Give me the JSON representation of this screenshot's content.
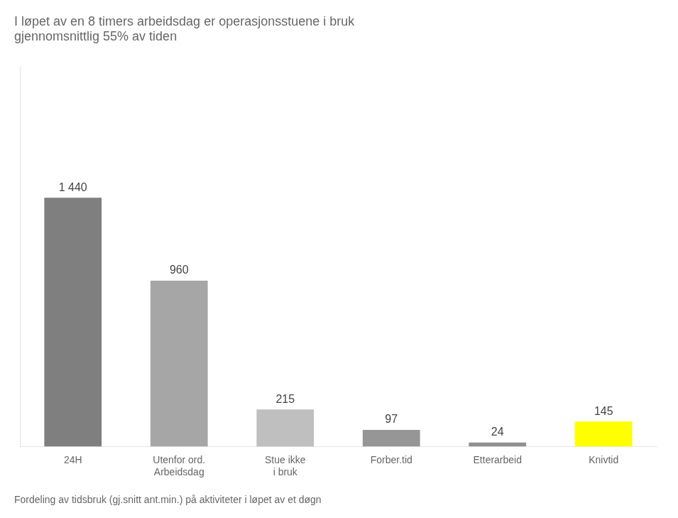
{
  "chart_data": {
    "type": "bar",
    "title": "I løpet av en 8 timers arbeidsdag er operasjonsstuene i bruk\ngjennomsnittlig 55% av tiden",
    "subtitle": "Fordeling av tidsbruk (gj.snitt ant.min.) på aktiviteter i løpet av et døgn",
    "categories": [
      "24H",
      "Utenfor ord.\nArbeidsdag",
      "Stue ikke\ni bruk",
      "Forber.tid",
      "Etterarbeid",
      "Knivtid"
    ],
    "values": [
      1440,
      960,
      215,
      97,
      24,
      145
    ],
    "value_labels": [
      "1 440",
      "960",
      "215",
      "97",
      "24",
      "145"
    ],
    "colors": [
      "#7f7f7f",
      "#a6a6a6",
      "#bfbfbf",
      "#969696",
      "#909090",
      "#ffff00"
    ],
    "ylim": [
      0,
      2200
    ],
    "grid": false,
    "tick_labels": "x",
    "data_labels": true
  }
}
